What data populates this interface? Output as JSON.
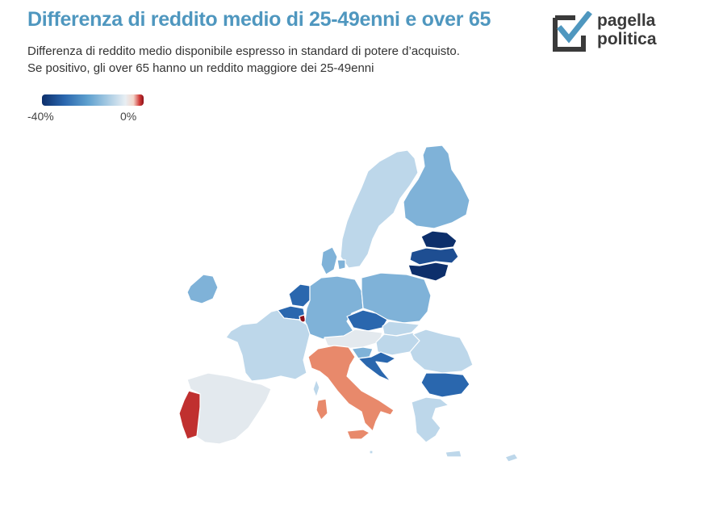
{
  "title": "Differenza di reddito medio di 25-49enni e over 65",
  "subtitle": [
    "Differenza di reddito medio disponibile espresso in standard di potere d’acquisto.",
    "Se positivo, gli over 65 hanno un reddito maggiore dei 25-49enni"
  ],
  "legend": {
    "min_label": "-40%",
    "max_label": "0%"
  },
  "logo": {
    "line1": "pagella",
    "line2": "politica",
    "icon": "checkmark-box-icon"
  },
  "colors": {
    "title": "#4f97bf",
    "very_negative": "#0d2f6b",
    "negative_strong": "#2a67ae",
    "negative_medium": "#7fb2d8",
    "negative_light": "#bdd7ea",
    "near_zero": "#e3e9ee",
    "positive_medium": "#e8896b",
    "positive_strong": "#c0302f",
    "positive_max": "#8b0f18"
  },
  "map": {
    "type": "choropleth",
    "region": "Unione Europea",
    "countries": [
      {
        "name": "Portugal",
        "color": "#c0302f"
      },
      {
        "name": "Spain",
        "color": "#e3e9ee"
      },
      {
        "name": "France",
        "color": "#bdd7ea"
      },
      {
        "name": "Ireland",
        "color": "#7fb2d8"
      },
      {
        "name": "Belgium",
        "color": "#2a67ae"
      },
      {
        "name": "Netherlands",
        "color": "#2a67ae"
      },
      {
        "name": "Luxembourg",
        "color": "#8b0f18"
      },
      {
        "name": "Germany",
        "color": "#7fb2d8"
      },
      {
        "name": "Denmark",
        "color": "#7fb2d8"
      },
      {
        "name": "Sweden",
        "color": "#bdd7ea"
      },
      {
        "name": "Finland",
        "color": "#7fb2d8"
      },
      {
        "name": "Estonia",
        "color": "#0d2f6b"
      },
      {
        "name": "Latvia",
        "color": "#1e4e92"
      },
      {
        "name": "Lithuania",
        "color": "#0d2f6b"
      },
      {
        "name": "Poland",
        "color": "#7fb2d8"
      },
      {
        "name": "Czechia",
        "color": "#2a67ae"
      },
      {
        "name": "Slovakia",
        "color": "#bdd7ea"
      },
      {
        "name": "Austria",
        "color": "#e3e9ee"
      },
      {
        "name": "Hungary",
        "color": "#bdd7ea"
      },
      {
        "name": "Slovenia",
        "color": "#7fb2d8"
      },
      {
        "name": "Croatia",
        "color": "#2a67ae"
      },
      {
        "name": "Romania",
        "color": "#bdd7ea"
      },
      {
        "name": "Bulgaria",
        "color": "#2a67ae"
      },
      {
        "name": "Greece",
        "color": "#bdd7ea"
      },
      {
        "name": "Italy",
        "color": "#e8896b"
      },
      {
        "name": "Cyprus",
        "color": "#bdd7ea"
      },
      {
        "name": "Malta",
        "color": "#bdd7ea"
      }
    ]
  }
}
